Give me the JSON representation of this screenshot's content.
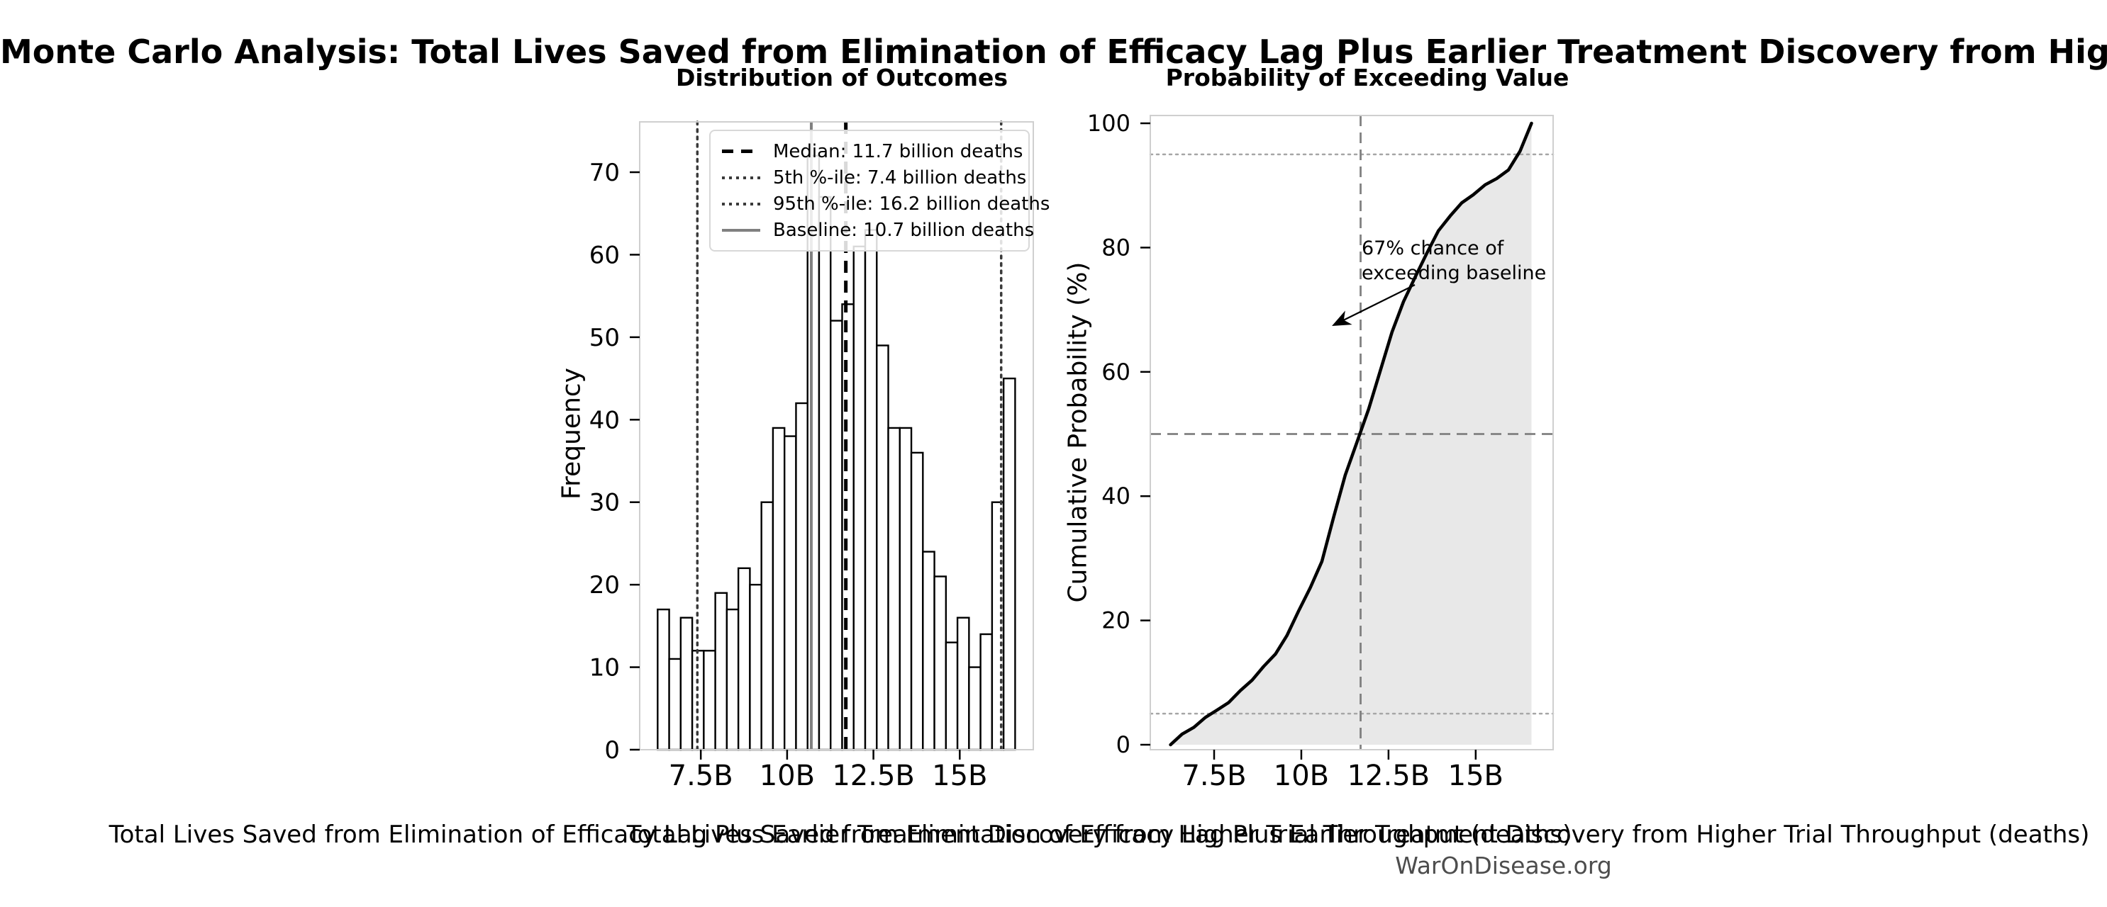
{
  "figure": {
    "title": "Monte Carlo Analysis: Total Lives Saved from Elimination of Efficacy Lag Plus Earlier Treatment Discovery from Higher Trial Throughput",
    "watermark": "WarOnDisease.org"
  },
  "colors": {
    "background": "#ffffff",
    "bar_fill": "#ffffff",
    "bar_edge": "#000000",
    "median_line": "#000000",
    "percentile_line": "#3a3a3a",
    "baseline_line": "#808080",
    "cdf_line": "#000000",
    "cdf_fill": "#e8e8e8",
    "reference_dashed": "#808080",
    "reference_dotted": "#a6a6a6",
    "spine": "#cfcfcf",
    "watermark_text": "#4d4d4d"
  },
  "legend": {
    "items": [
      {
        "label": "Median: 11.7 billion deaths",
        "style": "dashed-black"
      },
      {
        "label": "5th %-ile: 7.4 billion deaths",
        "style": "dotted-gray"
      },
      {
        "label": "95th %-ile: 16.2 billion deaths",
        "style": "dotted-gray"
      },
      {
        "label": "Baseline: 10.7 billion deaths",
        "style": "solid-gray"
      }
    ]
  },
  "chart_data": [
    {
      "type": "bar",
      "subtype": "histogram",
      "title": "Distribution of Outcomes",
      "xlabel": "Total Lives Saved from Elimination of Efficacy Lag Plus Earlier Treatment Discovery from Higher Trial Throughput (deaths)",
      "ylabel": "Frequency",
      "bin_start_billions": 6.25,
      "bin_width_billions": 0.334,
      "frequencies": [
        17,
        11,
        16,
        12,
        12,
        19,
        17,
        22,
        20,
        30,
        39,
        38,
        42,
        72,
        67,
        52,
        54,
        61,
        63,
        49,
        39,
        39,
        36,
        24,
        21,
        13,
        16,
        10,
        14,
        30,
        45
      ],
      "total_simulations": 1000,
      "xlim_billions": [
        5.73,
        17.13
      ],
      "ylim": [
        0,
        76.1
      ],
      "x_ticks": [
        {
          "value": 7.5,
          "label": "7.5B"
        },
        {
          "value": 10,
          "label": "10B"
        },
        {
          "value": 12.5,
          "label": "12.5B"
        },
        {
          "value": 15,
          "label": "15B"
        }
      ],
      "y_ticks": [
        0,
        10,
        20,
        30,
        40,
        50,
        60,
        70
      ],
      "grid": false,
      "legend_position": "upper right",
      "markers": {
        "median": {
          "value_billions": 11.7,
          "label": "Median: 11.7 billion deaths"
        },
        "p5": {
          "value_billions": 7.4,
          "label": "5th %-ile: 7.4 billion deaths"
        },
        "p95": {
          "value_billions": 16.2,
          "label": "95th %-ile: 16.2 billion deaths"
        },
        "baseline": {
          "value_billions": 10.7,
          "label": "Baseline: 10.7 billion deaths"
        }
      }
    },
    {
      "type": "line",
      "subtype": "empirical-cdf",
      "title": "Probability of Exceeding Value",
      "xlabel": "Total Lives Saved from Elimination of Efficacy Lag Plus Earlier Treatment Discovery from Higher Trial Throughput (deaths)",
      "ylabel": "Cumulative Probability (%)",
      "x_billions": [
        6.25,
        6.58,
        6.92,
        7.25,
        7.59,
        7.92,
        8.25,
        8.59,
        8.92,
        9.26,
        9.59,
        9.92,
        10.26,
        10.59,
        10.93,
        11.26,
        11.59,
        11.93,
        12.26,
        12.6,
        12.93,
        13.26,
        13.6,
        13.93,
        14.27,
        14.6,
        14.93,
        15.27,
        15.6,
        15.94,
        16.27,
        16.6
      ],
      "cumulative_percent": [
        0,
        1.7,
        2.8,
        4.4,
        5.6,
        6.8,
        8.7,
        10.4,
        12.6,
        14.6,
        17.6,
        21.5,
        25.3,
        29.5,
        36.7,
        43.4,
        48.6,
        54.0,
        60.1,
        66.4,
        71.3,
        75.2,
        79.1,
        82.7,
        85.1,
        87.2,
        88.5,
        90.1,
        91.1,
        92.5,
        95.5,
        100
      ],
      "xlim_billions": [
        5.67,
        17.22
      ],
      "ylim": [
        0,
        100
      ],
      "x_ticks": [
        {
          "value": 7.5,
          "label": "7.5B"
        },
        {
          "value": 10,
          "label": "10B"
        },
        {
          "value": 12.5,
          "label": "12.5B"
        },
        {
          "value": 15,
          "label": "15B"
        }
      ],
      "y_ticks": [
        0,
        20,
        40,
        60,
        80,
        100
      ],
      "grid": false,
      "reference_lines": {
        "horizontal_dashed_percent": 50,
        "vertical_dashed_billions": 11.7,
        "horizontal_dotted_percent": [
          5,
          95
        ]
      },
      "annotation": {
        "line1": "67% chance of",
        "line2": "exceeding baseline"
      }
    }
  ]
}
